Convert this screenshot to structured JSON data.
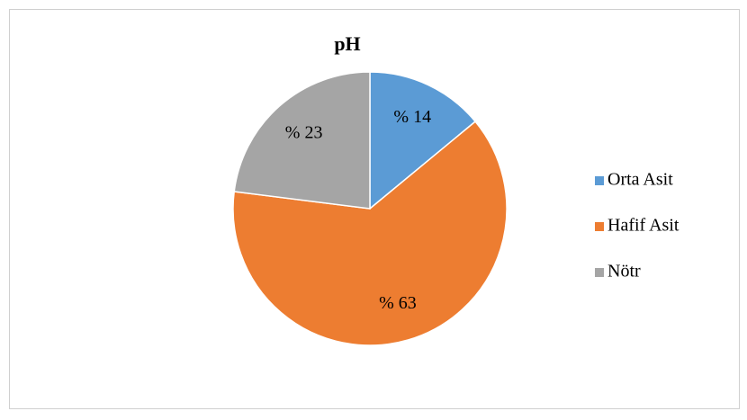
{
  "chart_data": {
    "type": "pie",
    "title": "pH",
    "categories": [
      "Orta Asit",
      "Hafif Asit",
      "Nötr"
    ],
    "values": [
      14,
      63,
      23
    ],
    "value_labels": [
      "% 14",
      "% 63",
      "% 23"
    ],
    "colors": [
      "#5b9bd5",
      "#ed7d31",
      "#a5a5a5"
    ],
    "legend": "right"
  }
}
